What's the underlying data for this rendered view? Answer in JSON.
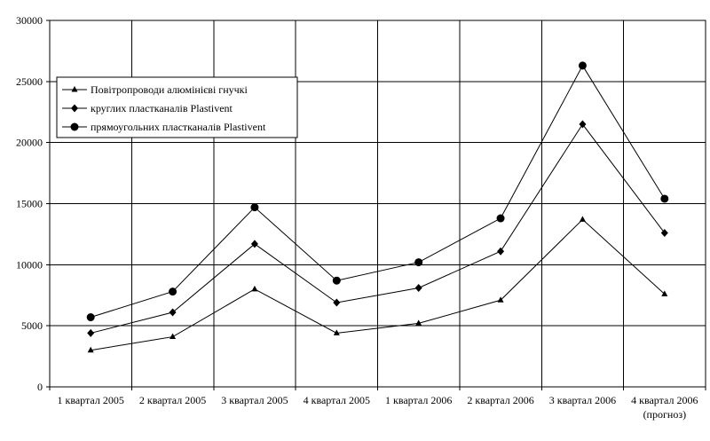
{
  "chart_data": {
    "type": "line",
    "title": "",
    "xlabel": "",
    "ylabel": "",
    "ylim": [
      0,
      30000
    ],
    "yticks": [
      0,
      5000,
      10000,
      15000,
      20000,
      25000,
      30000
    ],
    "grid": "on",
    "legend_position": "top-left",
    "categories": [
      "1 квартал 2005",
      "2 квартал 2005",
      "3 квартал 2005",
      "4 квартал 2005",
      "1 квартал 2006",
      "2 квартал 2006",
      "3 квартал 2006",
      "4 квартал 2006"
    ],
    "category_note": {
      "index": 7,
      "text": "(прогноз)"
    },
    "series": [
      {
        "name": "Повітропроводи алюмінієві гнучкі",
        "marker": "triangle",
        "values": [
          3000,
          4100,
          8000,
          4400,
          5200,
          7100,
          13700,
          7600
        ]
      },
      {
        "name": "круглих пластканалів  Plastivent",
        "marker": "diamond",
        "values": [
          4400,
          6100,
          11700,
          6900,
          8100,
          11100,
          21500,
          12600
        ]
      },
      {
        "name": "прямоугольних пластканалів  Plastivent",
        "marker": "circle",
        "values": [
          5700,
          7800,
          14700,
          8700,
          10200,
          13800,
          26300,
          15400
        ]
      }
    ],
    "colors": {
      "line": "#000000",
      "grid": "#000000",
      "background": "#ffffff"
    }
  }
}
